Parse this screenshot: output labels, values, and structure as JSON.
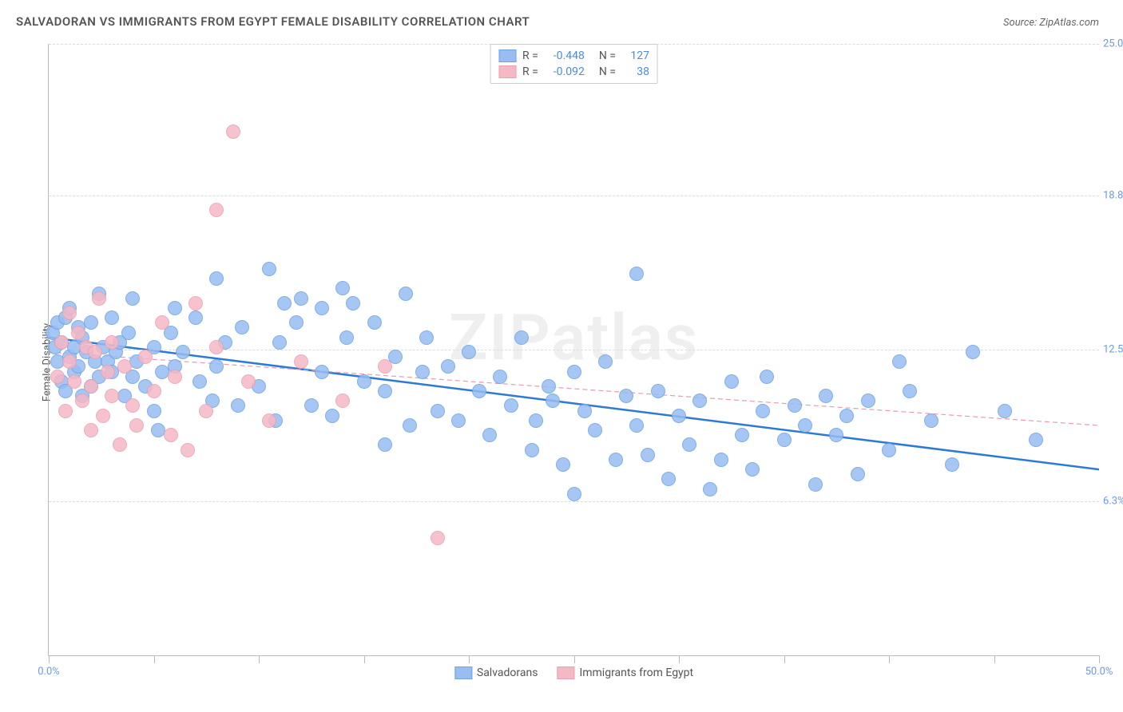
{
  "title": "SALVADORAN VS IMMIGRANTS FROM EGYPT FEMALE DISABILITY CORRELATION CHART",
  "source_label": "Source: ZipAtlas.com",
  "watermark": "ZIPatlas",
  "ylabel": "Female Disability",
  "chart": {
    "type": "scatter",
    "xmin": 0,
    "xmax": 50,
    "ymin": 0,
    "ymax": 25,
    "x_ticks": [
      0,
      5,
      10,
      15,
      20,
      25,
      30,
      35,
      40,
      45,
      50
    ],
    "x_tick_labels_shown": {
      "0": "0.0%",
      "50": "50.0%"
    },
    "y_ticks": [
      6.3,
      12.5,
      18.8,
      25.0
    ],
    "y_tick_format": "pct1",
    "grid_color": "#dddddd",
    "axis_color": "#bbbbbb",
    "tick_label_color": "#6b9ae0",
    "background_color": "#ffffff",
    "point_radius": 9,
    "point_stroke_alpha": 0.8,
    "point_fill_alpha": 0.35
  },
  "series": [
    {
      "name": "Salvadorans",
      "color_fill": "#97bdf1",
      "color_stroke": "#6da2e6",
      "R": "-0.448",
      "N": "127",
      "trend": {
        "y_at_xmin": 13.0,
        "y_at_xmax": 7.6,
        "style": "solid",
        "width": 2.5,
        "color": "#2d7ad6"
      },
      "points": [
        [
          0.2,
          13.2
        ],
        [
          0.3,
          12.6
        ],
        [
          0.4,
          12.0
        ],
        [
          0.4,
          13.6
        ],
        [
          0.6,
          11.2
        ],
        [
          0.6,
          12.8
        ],
        [
          0.8,
          13.8
        ],
        [
          0.8,
          10.8
        ],
        [
          1.0,
          14.2
        ],
        [
          1.0,
          12.2
        ],
        [
          1.2,
          12.6
        ],
        [
          1.2,
          11.6
        ],
        [
          1.4,
          13.4
        ],
        [
          1.4,
          11.8
        ],
        [
          1.6,
          10.6
        ],
        [
          1.6,
          13.0
        ],
        [
          1.8,
          12.4
        ],
        [
          2.0,
          11.0
        ],
        [
          2.0,
          13.6
        ],
        [
          2.2,
          12.0
        ],
        [
          2.4,
          14.8
        ],
        [
          2.4,
          11.4
        ],
        [
          2.6,
          12.6
        ],
        [
          2.8,
          12.0
        ],
        [
          3.0,
          11.6
        ],
        [
          3.0,
          13.8
        ],
        [
          3.2,
          12.4
        ],
        [
          3.4,
          12.8
        ],
        [
          3.6,
          10.6
        ],
        [
          3.8,
          13.2
        ],
        [
          4.0,
          11.4
        ],
        [
          4.0,
          14.6
        ],
        [
          4.2,
          12.0
        ],
        [
          4.6,
          11.0
        ],
        [
          5.0,
          10.0
        ],
        [
          5.0,
          12.6
        ],
        [
          5.2,
          9.2
        ],
        [
          5.4,
          11.6
        ],
        [
          5.8,
          13.2
        ],
        [
          6.0,
          11.8
        ],
        [
          6.0,
          14.2
        ],
        [
          6.4,
          12.4
        ],
        [
          7.0,
          13.8
        ],
        [
          7.2,
          11.2
        ],
        [
          7.8,
          10.4
        ],
        [
          8.0,
          11.8
        ],
        [
          8.0,
          15.4
        ],
        [
          8.4,
          12.8
        ],
        [
          9.0,
          10.2
        ],
        [
          9.2,
          13.4
        ],
        [
          10.0,
          11.0
        ],
        [
          10.5,
          15.8
        ],
        [
          10.8,
          9.6
        ],
        [
          11.0,
          12.8
        ],
        [
          11.2,
          14.4
        ],
        [
          11.8,
          13.6
        ],
        [
          12.0,
          14.6
        ],
        [
          12.5,
          10.2
        ],
        [
          13.0,
          11.6
        ],
        [
          13.0,
          14.2
        ],
        [
          13.5,
          9.8
        ],
        [
          14.0,
          15.0
        ],
        [
          14.2,
          13.0
        ],
        [
          14.5,
          14.4
        ],
        [
          15.0,
          11.2
        ],
        [
          15.5,
          13.6
        ],
        [
          16.0,
          10.8
        ],
        [
          16.0,
          8.6
        ],
        [
          16.5,
          12.2
        ],
        [
          17.0,
          14.8
        ],
        [
          17.2,
          9.4
        ],
        [
          17.8,
          11.6
        ],
        [
          18.0,
          13.0
        ],
        [
          18.5,
          10.0
        ],
        [
          19.0,
          11.8
        ],
        [
          19.5,
          9.6
        ],
        [
          20.0,
          12.4
        ],
        [
          20.5,
          10.8
        ],
        [
          21.0,
          9.0
        ],
        [
          21.5,
          11.4
        ],
        [
          22.0,
          10.2
        ],
        [
          22.5,
          13.0
        ],
        [
          23.0,
          8.4
        ],
        [
          23.2,
          9.6
        ],
        [
          23.8,
          11.0
        ],
        [
          24.0,
          10.4
        ],
        [
          24.5,
          7.8
        ],
        [
          25.0,
          11.6
        ],
        [
          25.0,
          6.6
        ],
        [
          25.5,
          10.0
        ],
        [
          26.0,
          9.2
        ],
        [
          26.5,
          12.0
        ],
        [
          27.0,
          8.0
        ],
        [
          27.5,
          10.6
        ],
        [
          28.0,
          9.4
        ],
        [
          28.0,
          15.6
        ],
        [
          28.5,
          8.2
        ],
        [
          29.0,
          10.8
        ],
        [
          29.5,
          7.2
        ],
        [
          30.0,
          9.8
        ],
        [
          30.5,
          8.6
        ],
        [
          31.0,
          10.4
        ],
        [
          31.5,
          6.8
        ],
        [
          32.0,
          8.0
        ],
        [
          32.5,
          11.2
        ],
        [
          33.0,
          9.0
        ],
        [
          33.5,
          7.6
        ],
        [
          34.0,
          10.0
        ],
        [
          34.2,
          11.4
        ],
        [
          35.0,
          8.8
        ],
        [
          35.5,
          10.2
        ],
        [
          36.0,
          9.4
        ],
        [
          36.5,
          7.0
        ],
        [
          37.0,
          10.6
        ],
        [
          37.5,
          9.0
        ],
        [
          38.0,
          9.8
        ],
        [
          38.5,
          7.4
        ],
        [
          39.0,
          10.4
        ],
        [
          40.0,
          8.4
        ],
        [
          40.5,
          12.0
        ],
        [
          41.0,
          10.8
        ],
        [
          42.0,
          9.6
        ],
        [
          43.0,
          7.8
        ],
        [
          44.0,
          12.4
        ],
        [
          45.5,
          10.0
        ],
        [
          47.0,
          8.8
        ]
      ]
    },
    {
      "name": "Immigrants from Egypt",
      "color_fill": "#f5b8c5",
      "color_stroke": "#ec9fb1",
      "R": "-0.092",
      "N": "38",
      "trend": {
        "y_at_xmin": 12.4,
        "y_at_xmax": 9.4,
        "style": "dashed",
        "width": 1.2,
        "color": "#e99ab0"
      },
      "points": [
        [
          0.4,
          11.4
        ],
        [
          0.6,
          12.8
        ],
        [
          0.8,
          10.0
        ],
        [
          1.0,
          12.0
        ],
        [
          1.0,
          14.0
        ],
        [
          1.2,
          11.2
        ],
        [
          1.4,
          13.2
        ],
        [
          1.6,
          10.4
        ],
        [
          1.8,
          12.6
        ],
        [
          2.0,
          11.0
        ],
        [
          2.0,
          9.2
        ],
        [
          2.2,
          12.4
        ],
        [
          2.4,
          14.6
        ],
        [
          2.6,
          9.8
        ],
        [
          2.8,
          11.6
        ],
        [
          3.0,
          10.6
        ],
        [
          3.0,
          12.8
        ],
        [
          3.4,
          8.6
        ],
        [
          3.6,
          11.8
        ],
        [
          4.0,
          10.2
        ],
        [
          4.2,
          9.4
        ],
        [
          4.6,
          12.2
        ],
        [
          5.0,
          10.8
        ],
        [
          5.4,
          13.6
        ],
        [
          5.8,
          9.0
        ],
        [
          6.0,
          11.4
        ],
        [
          6.6,
          8.4
        ],
        [
          7.0,
          14.4
        ],
        [
          7.5,
          10.0
        ],
        [
          8.0,
          12.6
        ],
        [
          8.0,
          18.2
        ],
        [
          8.8,
          21.4
        ],
        [
          9.5,
          11.2
        ],
        [
          10.5,
          9.6
        ],
        [
          12.0,
          12.0
        ],
        [
          14.0,
          10.4
        ],
        [
          16.0,
          11.8
        ],
        [
          18.5,
          4.8
        ]
      ]
    }
  ],
  "legend_top_labels": {
    "R": "R =",
    "N": "N ="
  },
  "legend_bottom": [
    "Salvadorans",
    "Immigrants from Egypt"
  ]
}
